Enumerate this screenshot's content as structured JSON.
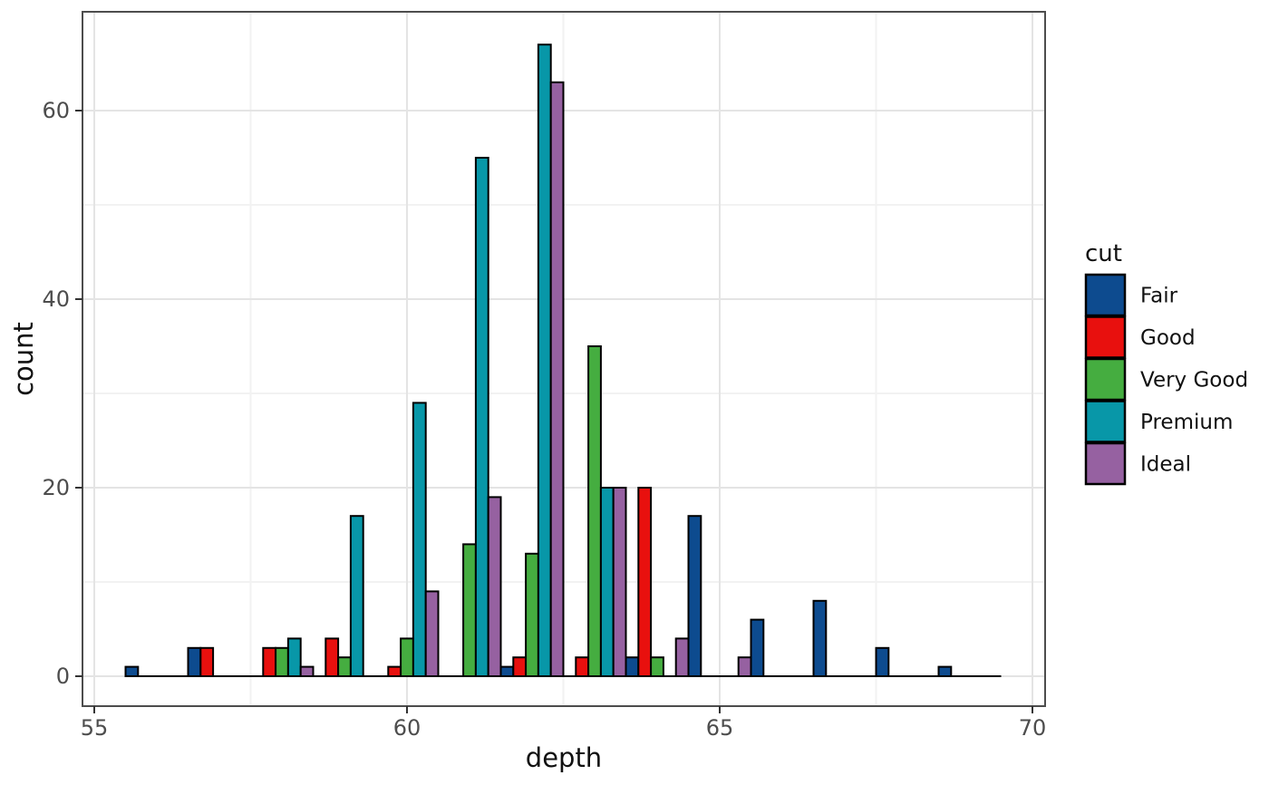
{
  "chart_data": {
    "type": "bar",
    "variant": "dodged-histogram",
    "title": "",
    "xlabel": "depth",
    "ylabel": "count",
    "legend": {
      "title": "cut",
      "position": "right",
      "entries": [
        "Fair",
        "Good",
        "Very Good",
        "Premium",
        "Ideal"
      ]
    },
    "x_axis": {
      "ticks": [
        55,
        60,
        65,
        70
      ],
      "minor_ticks": [
        57.5,
        62.5,
        67.5
      ],
      "range": [
        54.8,
        70.2
      ]
    },
    "y_axis": {
      "ticks": [
        0,
        20,
        40,
        60
      ],
      "minor_ticks": [
        10,
        30,
        50
      ],
      "range": [
        -3.2,
        70.5
      ]
    },
    "grid": true,
    "bin_width": 1,
    "bin_centers": [
      56,
      57,
      58,
      59,
      60,
      61,
      62,
      63,
      64,
      65,
      66,
      67,
      68,
      69
    ],
    "series": [
      {
        "name": "Fair",
        "color": "#0d4b8f",
        "values": [
          1,
          3,
          0,
          0,
          0,
          0,
          1,
          0,
          2,
          17,
          6,
          8,
          3,
          1
        ]
      },
      {
        "name": "Good",
        "color": "#e8100e",
        "values": [
          0,
          3,
          3,
          4,
          1,
          0,
          2,
          2,
          20,
          0,
          0,
          0,
          0,
          0
        ]
      },
      {
        "name": "Very Good",
        "color": "#45ad40",
        "values": [
          0,
          0,
          3,
          2,
          4,
          14,
          13,
          35,
          2,
          0,
          0,
          0,
          0,
          0
        ]
      },
      {
        "name": "Premium",
        "color": "#0897a8",
        "values": [
          0,
          0,
          4,
          17,
          29,
          55,
          67,
          20,
          0,
          0,
          0,
          0,
          0,
          0
        ]
      },
      {
        "name": "Ideal",
        "color": "#9661a1",
        "values": [
          0,
          0,
          1,
          0,
          9,
          19,
          63,
          20,
          4,
          2,
          0,
          0,
          0,
          0
        ]
      }
    ],
    "baseline_span": [
      55.5,
      69.5
    ],
    "bar_outline": "#000000"
  },
  "theme": {
    "background": "#ffffff",
    "panel_background": "#ffffff",
    "panel_border": "#4d4d4d",
    "grid_major": "#e4e4e4",
    "grid_minor": "#f2f2f2",
    "tick_color": "#333333",
    "tick_label_color": "#4d4d4d",
    "text_color": "#111111"
  }
}
